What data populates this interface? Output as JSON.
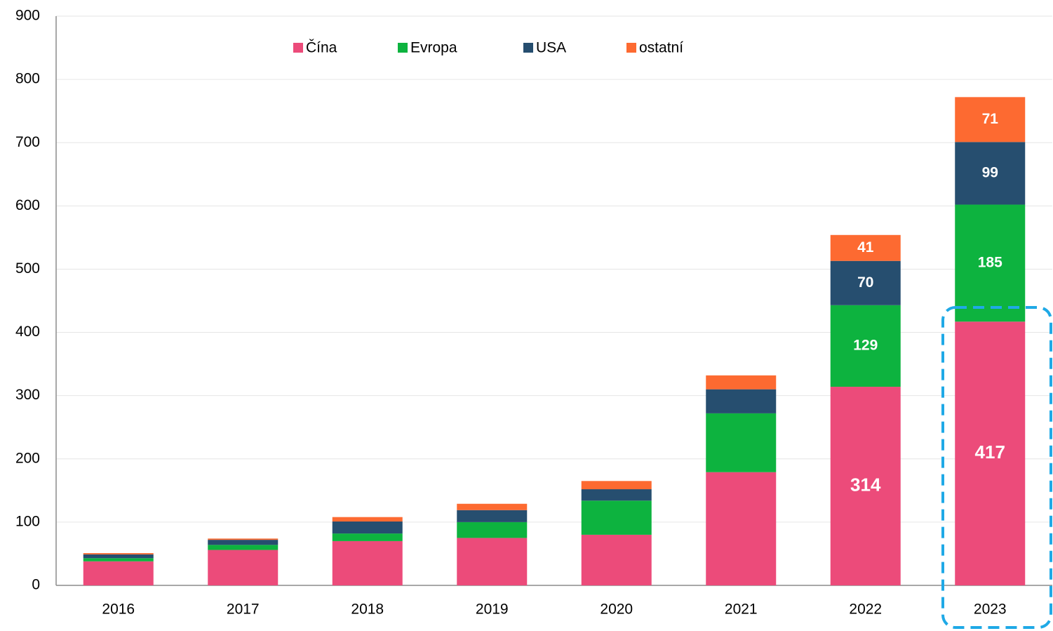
{
  "chart_data": {
    "type": "bar",
    "stacked": true,
    "categories": [
      "2016",
      "2017",
      "2018",
      "2019",
      "2020",
      "2021",
      "2022",
      "2023"
    ],
    "series": [
      {
        "name": "Čína",
        "color": "#ec4b7a",
        "values": [
          38,
          56,
          70,
          75,
          80,
          179,
          314,
          417
        ],
        "value_labels": [
          null,
          null,
          null,
          null,
          null,
          null,
          "314",
          "417"
        ]
      },
      {
        "name": "Evropa",
        "color": "#0db33f",
        "values": [
          5,
          8,
          12,
          25,
          54,
          93,
          129,
          185
        ],
        "value_labels": [
          null,
          null,
          null,
          null,
          null,
          null,
          "129",
          "185"
        ]
      },
      {
        "name": "USA",
        "color": "#264e6f",
        "values": [
          6,
          8,
          19,
          19,
          18,
          38,
          70,
          99
        ],
        "value_labels": [
          null,
          null,
          null,
          null,
          null,
          null,
          "70",
          "99"
        ]
      },
      {
        "name": "ostatní",
        "color": "#fd6a31",
        "values": [
          2,
          2,
          7,
          10,
          13,
          22,
          41,
          71
        ],
        "value_labels": [
          null,
          null,
          null,
          null,
          null,
          null,
          "41",
          "71"
        ]
      }
    ],
    "ylim": [
      0,
      900
    ],
    "yticks": [
      0,
      100,
      200,
      300,
      400,
      500,
      600,
      700,
      800,
      900
    ],
    "grid": true,
    "legend": "top"
  }
}
